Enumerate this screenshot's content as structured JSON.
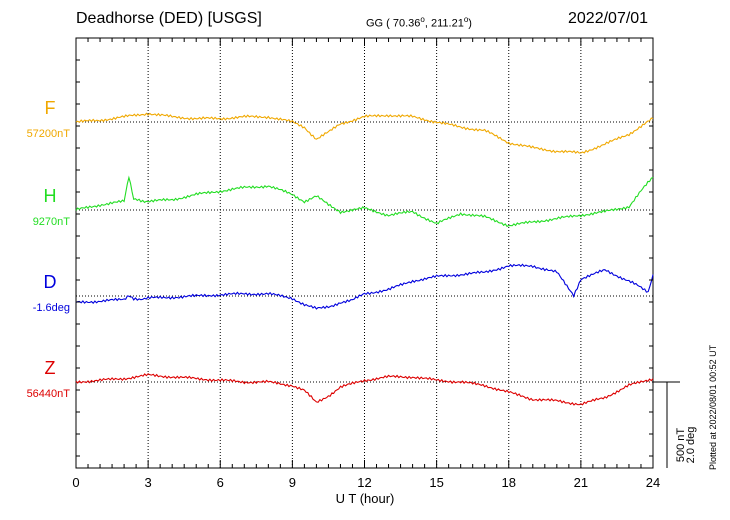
{
  "header": {
    "station": "Deadhorse (DED)  [USGS]",
    "coords_prefix": "GG ( 70.36",
    "coords_mid": ", 211.21",
    "coords_suffix": ")",
    "date": "2022/07/01"
  },
  "side_note": "Plotted at 2022/08/01 00:52 UT",
  "scale_bar": {
    "label_nt": "500 nT",
    "label_deg": "2.0 deg"
  },
  "chart_data": {
    "type": "line",
    "xlabel": "U T (hour)",
    "xlim": [
      0,
      24
    ],
    "x_ticks": [
      0,
      3,
      6,
      9,
      12,
      15,
      18,
      21,
      24
    ],
    "grid": true,
    "scale": {
      "nT_per_division": 500,
      "deg_per_division": 2.0
    },
    "series": [
      {
        "name": "F",
        "baseline_label": "57200nT",
        "baseline": 57200,
        "unit": "nT",
        "color": "#f0a800",
        "x": [
          0,
          1,
          2,
          3,
          4,
          5,
          6,
          7,
          8,
          9,
          9.5,
          10,
          10.5,
          11,
          12,
          13,
          14,
          15,
          16,
          17,
          18,
          19,
          20,
          21,
          22,
          23,
          24
        ],
        "y": [
          57200,
          57210,
          57230,
          57250,
          57230,
          57220,
          57220,
          57230,
          57230,
          57200,
          57170,
          57100,
          57140,
          57190,
          57230,
          57240,
          57230,
          57200,
          57170,
          57150,
          57080,
          57050,
          57030,
          57020,
          57070,
          57130,
          57220
        ]
      },
      {
        "name": "H",
        "baseline_label": "9270nT",
        "baseline": 9270,
        "unit": "nT",
        "color": "#22dd22",
        "x": [
          0,
          1,
          2,
          2.2,
          2.4,
          3,
          4,
          5,
          6,
          7,
          8,
          9,
          9.5,
          10,
          10.5,
          11,
          12,
          13,
          14,
          15,
          16,
          17,
          18,
          19,
          20,
          21,
          22,
          23,
          23.5,
          24
        ],
        "y": [
          9270,
          9300,
          9320,
          9460,
          9330,
          9320,
          9330,
          9360,
          9380,
          9400,
          9410,
          9360,
          9320,
          9350,
          9300,
          9260,
          9280,
          9240,
          9260,
          9190,
          9250,
          9230,
          9180,
          9200,
          9220,
          9240,
          9260,
          9290,
          9380,
          9460
        ]
      },
      {
        "name": "D",
        "baseline_label": "-1.6deg",
        "baseline": -1.6,
        "unit": "deg",
        "color": "#0000dd",
        "x": [
          0,
          1,
          2,
          2.2,
          2.4,
          3,
          4,
          5,
          6,
          7,
          8,
          9,
          9.5,
          10,
          10.5,
          11,
          11.5,
          12,
          13,
          14,
          15,
          16,
          17,
          18,
          19,
          20,
          20.7,
          21,
          22,
          23,
          23.8,
          24
        ],
        "y": [
          -1.75,
          -1.72,
          -1.68,
          -1.6,
          -1.68,
          -1.65,
          -1.63,
          -1.6,
          -1.57,
          -1.55,
          -1.55,
          -1.65,
          -1.8,
          -1.9,
          -1.85,
          -1.75,
          -1.7,
          -1.55,
          -1.45,
          -1.25,
          -1.15,
          -1.1,
          -1.05,
          -0.9,
          -0.9,
          -1.05,
          -1.6,
          -1.2,
          -1.0,
          -1.25,
          -1.5,
          -1.1
        ]
      },
      {
        "name": "Z",
        "baseline_label": "56440nT",
        "baseline": 56440,
        "unit": "nT",
        "color": "#dd0000",
        "x": [
          0,
          1,
          2,
          3,
          4,
          5,
          6,
          7,
          8,
          9,
          9.5,
          10,
          10.5,
          11,
          12,
          13,
          14,
          15,
          16,
          17,
          18,
          19,
          20,
          21,
          22,
          23,
          24
        ],
        "y": [
          56440,
          56450,
          56460,
          56480,
          56470,
          56460,
          56450,
          56440,
          56440,
          56420,
          56390,
          56320,
          56360,
          56410,
          56450,
          56470,
          56470,
          56450,
          56440,
          56420,
          56380,
          56340,
          56330,
          56310,
          56350,
          56420,
          56460
        ]
      }
    ]
  }
}
